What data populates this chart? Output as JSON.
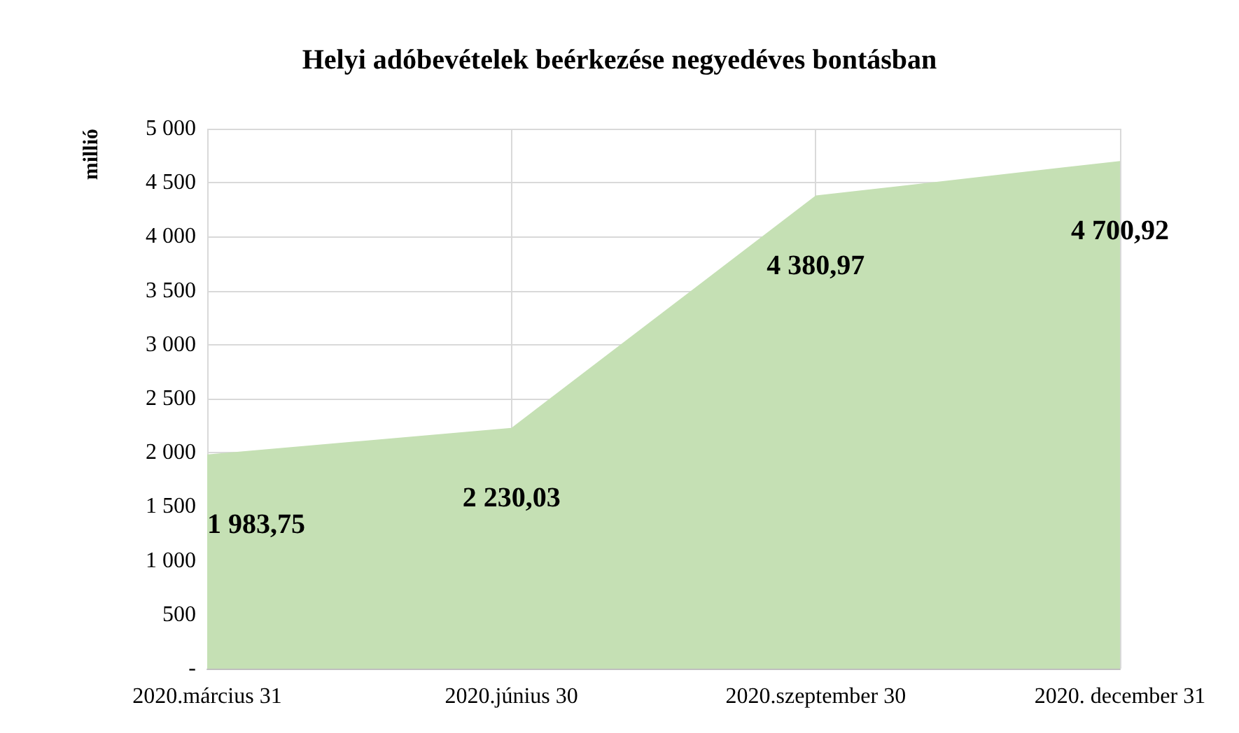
{
  "chart_data": {
    "type": "area",
    "title": "Helyi adóbevételek beérkezése negyedéves bontásban",
    "ylabel": "millió",
    "categories": [
      "2020.március 31",
      "2020.június 30",
      "2020.szeptember 30",
      "2020. december 31"
    ],
    "series": [
      {
        "color": "#c5e0b4",
        "values": [
          1983.75,
          2230.03,
          4380.97,
          4700.92
        ],
        "value_labels": [
          "1 983,75",
          "2 230,03",
          "4 380,97",
          "4 700,92"
        ]
      }
    ],
    "ylim": [
      0,
      5000
    ],
    "yticks": [
      {
        "value": 0,
        "label": "-"
      },
      {
        "value": 500,
        "label": "500"
      },
      {
        "value": 1000,
        "label": "1 000"
      },
      {
        "value": 1500,
        "label": "1 500"
      },
      {
        "value": 2000,
        "label": "2 000"
      },
      {
        "value": 2500,
        "label": "2 500"
      },
      {
        "value": 3000,
        "label": "3 000"
      },
      {
        "value": 3500,
        "label": "3 500"
      },
      {
        "value": 4000,
        "label": "4 000"
      },
      {
        "value": 4500,
        "label": "4 500"
      },
      {
        "value": 5000,
        "label": "5 000"
      }
    ],
    "grid": true
  }
}
